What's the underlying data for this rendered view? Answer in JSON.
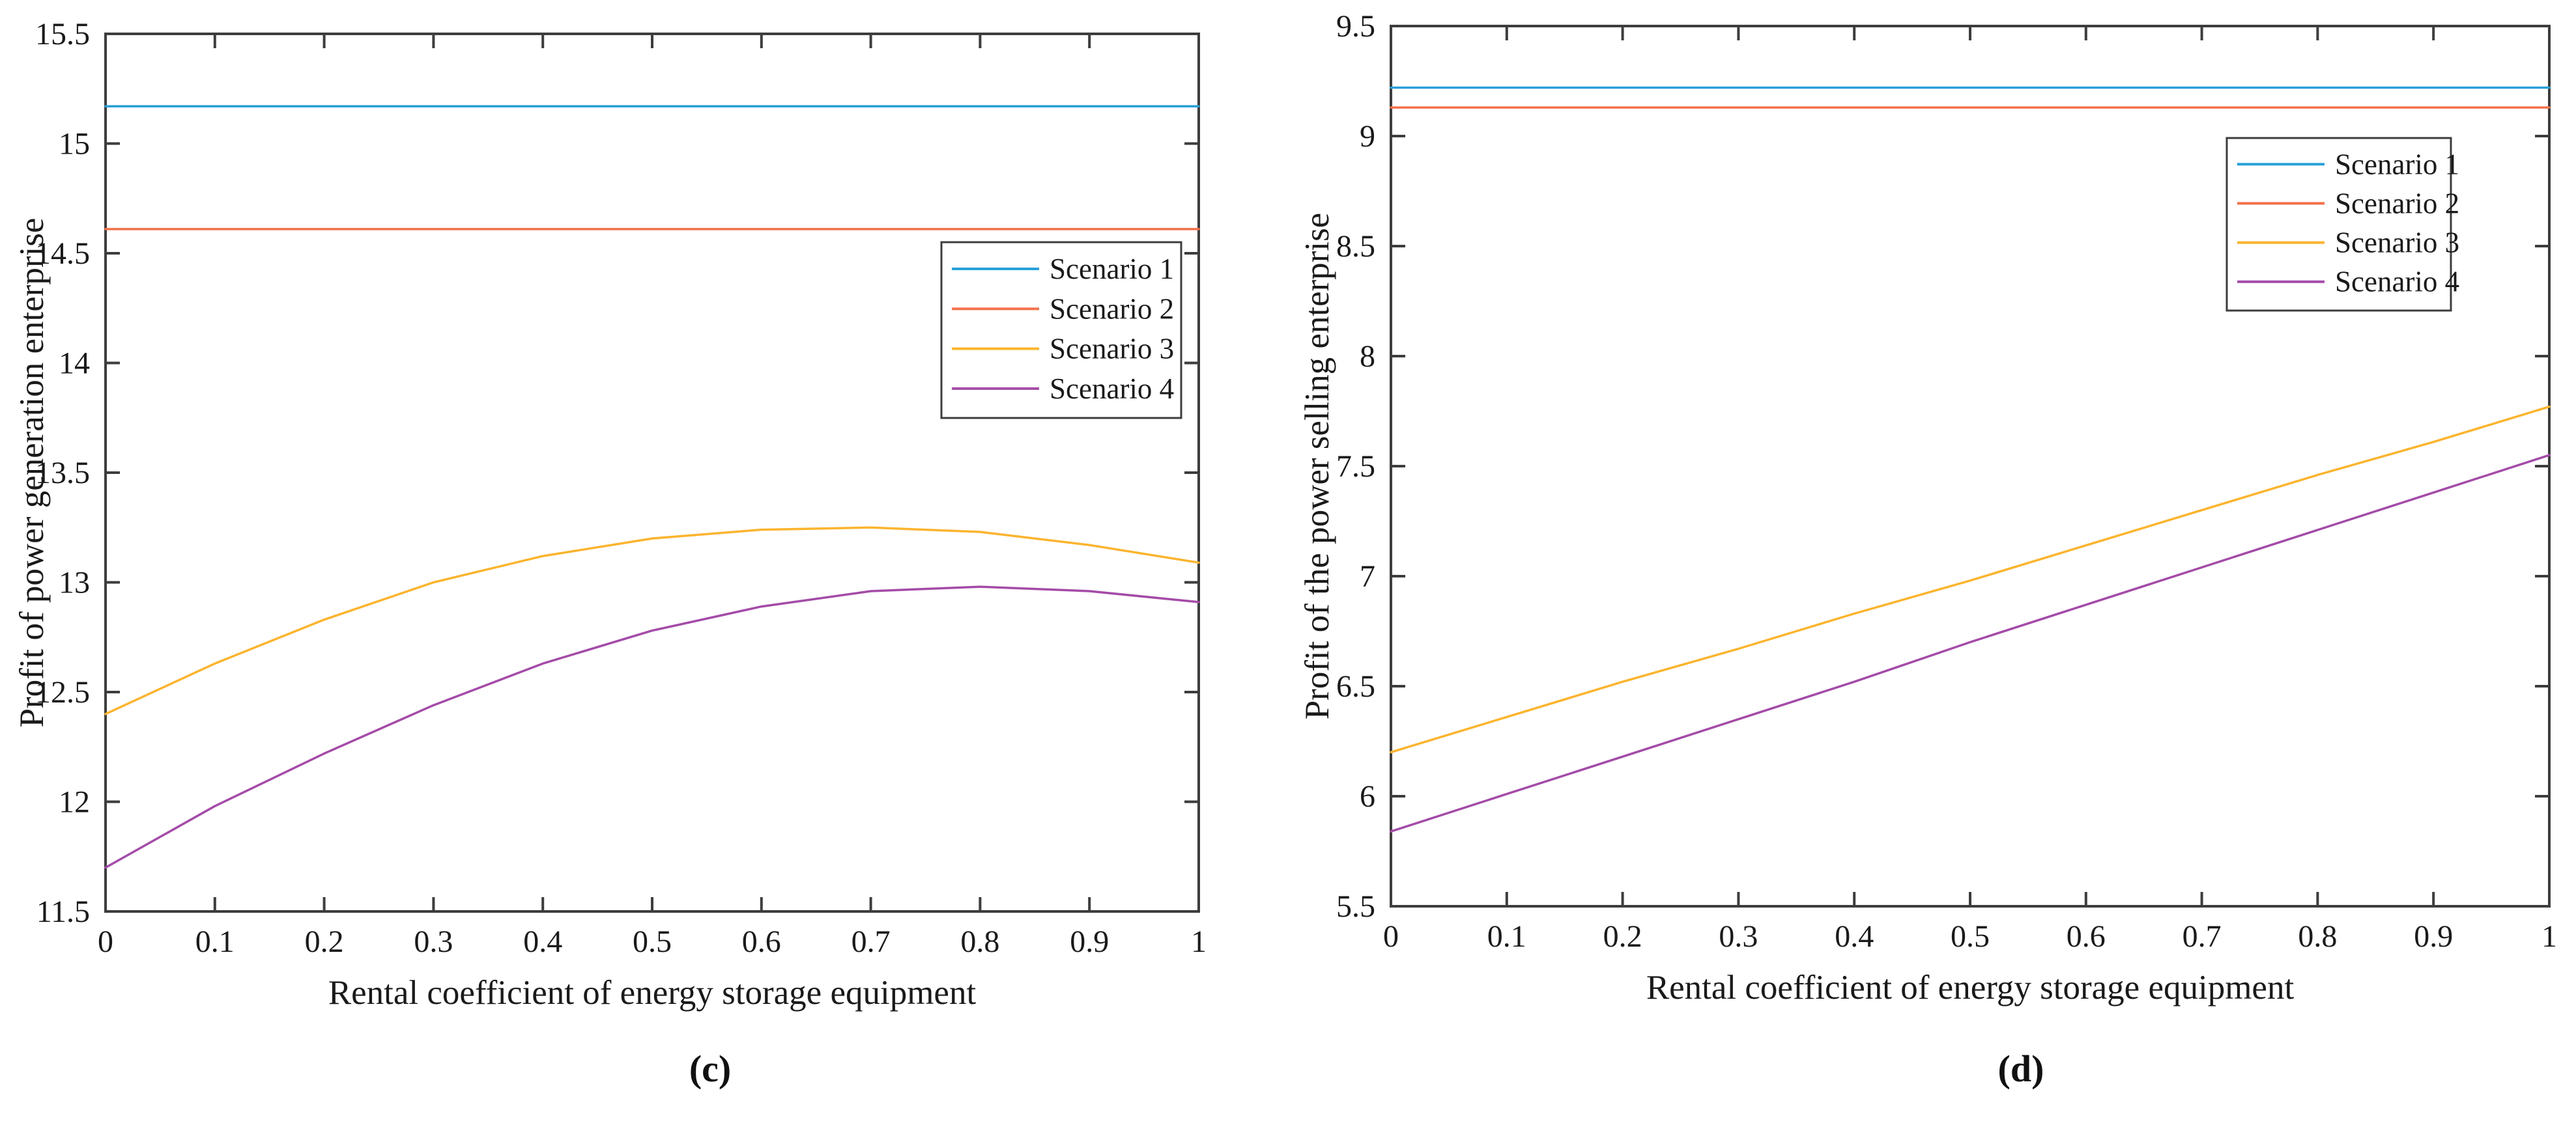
{
  "figure": {
    "captions": {
      "left": "(c)",
      "right": "(d)"
    }
  },
  "colors": {
    "axis": "#3d3d3d",
    "text": "#1a1a1a",
    "scenario1": "#29a0d8",
    "scenario2": "#f3714b",
    "scenario3": "#fbb42e",
    "scenario4": "#a44ba8"
  },
  "chart_data": [
    {
      "type": "line",
      "caption": "(c)",
      "xlabel": "Rental coefficient of energy storage equipment",
      "ylabel": "Profit of power generation enterprise",
      "xlim": [
        0,
        1
      ],
      "ylim": [
        11.5,
        15.5
      ],
      "grid": false,
      "legend_position": "right-upper-inside",
      "x": [
        0,
        0.1,
        0.2,
        0.3,
        0.4,
        0.5,
        0.6,
        0.7,
        0.8,
        0.9,
        1
      ],
      "xtick_labels": [
        "0",
        "0.1",
        "0.2",
        "0.3",
        "0.4",
        "0.5",
        "0.6",
        "0.7",
        "0.8",
        "0.9",
        "1"
      ],
      "ytick_values": [
        11.5,
        12,
        12.5,
        13,
        13.5,
        14,
        14.5,
        15,
        15.5
      ],
      "ytick_labels": [
        "11.5",
        "12",
        "12.5",
        "13",
        "13.5",
        "14",
        "14.5",
        "15",
        "15.5"
      ],
      "series": [
        {
          "name": "Scenario 1",
          "color": "#29a0d8",
          "values": [
            15.17,
            15.17,
            15.17,
            15.17,
            15.17,
            15.17,
            15.17,
            15.17,
            15.17,
            15.17,
            15.17
          ]
        },
        {
          "name": "Scenario 2",
          "color": "#f3714b",
          "values": [
            14.61,
            14.61,
            14.61,
            14.61,
            14.61,
            14.61,
            14.61,
            14.61,
            14.61,
            14.61,
            14.61
          ]
        },
        {
          "name": "Scenario 3",
          "color": "#fbb42e",
          "values": [
            12.4,
            12.63,
            12.83,
            13.0,
            13.12,
            13.2,
            13.24,
            13.25,
            13.23,
            13.17,
            13.09
          ]
        },
        {
          "name": "Scenario 4",
          "color": "#a44ba8",
          "values": [
            11.7,
            11.98,
            12.22,
            12.44,
            12.63,
            12.78,
            12.89,
            12.96,
            12.98,
            12.96,
            12.91
          ]
        }
      ]
    },
    {
      "type": "line",
      "caption": "(d)",
      "xlabel": "Rental coefficient of energy storage equipment",
      "ylabel": "Profit of the power selling enterprise",
      "xlim": [
        0,
        1
      ],
      "ylim": [
        5.5,
        9.5
      ],
      "grid": false,
      "legend_position": "right-upper-inside",
      "x": [
        0,
        0.1,
        0.2,
        0.3,
        0.4,
        0.5,
        0.6,
        0.7,
        0.8,
        0.9,
        1
      ],
      "xtick_labels": [
        "0",
        "0.1",
        "0.2",
        "0.3",
        "0.4",
        "0.5",
        "0.6",
        "0.7",
        "0.8",
        "0.9",
        "1"
      ],
      "ytick_values": [
        5.5,
        6,
        6.5,
        7,
        7.5,
        8,
        8.5,
        9,
        9.5
      ],
      "ytick_labels": [
        "5.5",
        "6",
        "6.5",
        "7",
        "7.5",
        "8",
        "8.5",
        "9",
        "9.5"
      ],
      "series": [
        {
          "name": "Scenario 1",
          "color": "#29a0d8",
          "values": [
            9.22,
            9.22,
            9.22,
            9.22,
            9.22,
            9.22,
            9.22,
            9.22,
            9.22,
            9.22,
            9.22
          ]
        },
        {
          "name": "Scenario 2",
          "color": "#f3714b",
          "values": [
            9.13,
            9.13,
            9.13,
            9.13,
            9.13,
            9.13,
            9.13,
            9.13,
            9.13,
            9.13,
            9.13
          ]
        },
        {
          "name": "Scenario 3",
          "color": "#fbb42e",
          "values": [
            6.2,
            6.36,
            6.52,
            6.67,
            6.83,
            6.98,
            7.14,
            7.3,
            7.46,
            7.61,
            7.77
          ]
        },
        {
          "name": "Scenario 4",
          "color": "#a44ba8",
          "values": [
            5.84,
            6.01,
            6.18,
            6.35,
            6.52,
            6.7,
            6.87,
            7.04,
            7.21,
            7.38,
            7.55
          ]
        }
      ]
    }
  ]
}
